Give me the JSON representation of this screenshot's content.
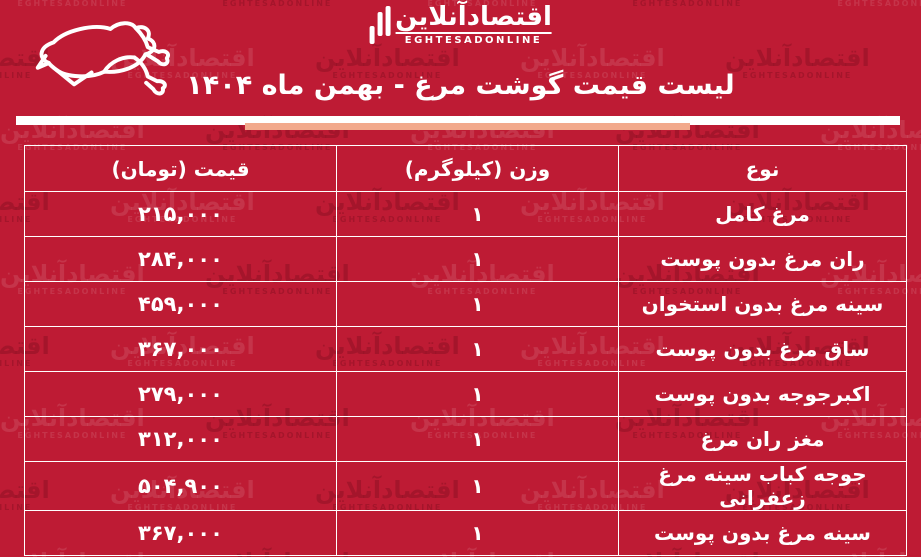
{
  "brand": {
    "name_fa": "اقتصادآنلاین",
    "name_en": "EGHTESADONLINE"
  },
  "title": "لیست قیمت گوشت مرغ - بهمن ماه ۱۴۰۴",
  "colors": {
    "background": "#be1b34",
    "divider_white": "#ffffff",
    "divider_salmon": "#f2a98c",
    "text": "#ffffff"
  },
  "icons": {
    "chicken_illustration": "whole-raw-chicken-outline",
    "logo_bars": "eghtesadonline-bars"
  },
  "table": {
    "headers": {
      "type": "نوع",
      "weight": "وزن (کیلوگرم)",
      "price": "قیمت (تومان)"
    },
    "rows": [
      {
        "type": "مرغ کامل",
        "weight": "۱",
        "price": "۲۱۵,۰۰۰"
      },
      {
        "type": "ران مرغ بدون پوست",
        "weight": "۱",
        "price": "۲۸۴,۰۰۰"
      },
      {
        "type": "سینه مرغ بدون استخوان",
        "weight": "۱",
        "price": "۴۵۹,۰۰۰"
      },
      {
        "type": "ساق مرغ بدون پوست",
        "weight": "۱",
        "price": "۳۶۷,۰۰۰"
      },
      {
        "type": "اکبرجوجه بدون پوست",
        "weight": "۱",
        "price": "۲۷۹,۰۰۰"
      },
      {
        "type": "مغز ران مرغ",
        "weight": "۱",
        "price": "۳۱۲,۰۰۰"
      },
      {
        "type": "جوجه کباب سینه مرغ زعفرانی",
        "weight": "۱",
        "price": "۵۰۴,۹۰۰"
      },
      {
        "type": "سینه مرغ بدون پوست",
        "weight": "۱",
        "price": "۳۶۷,۰۰۰"
      }
    ]
  }
}
